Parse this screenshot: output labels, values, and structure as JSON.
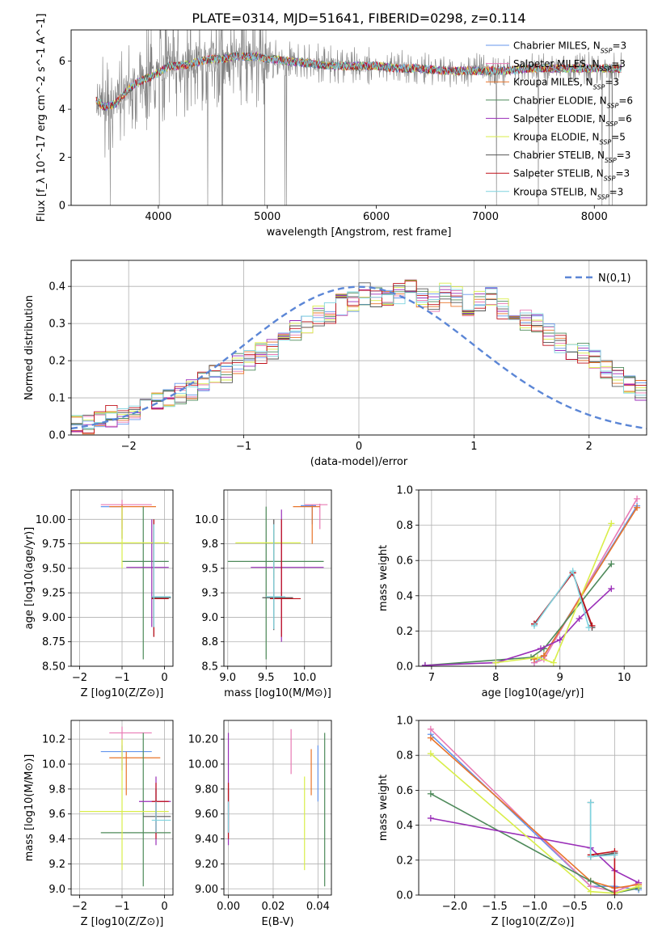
{
  "title": "PLATE=0314, MJD=51641, FIBERID=0298, z=0.114",
  "series_style": [
    {
      "name": "Chabrier MILES",
      "nssp": "3",
      "color": "#6495ed"
    },
    {
      "name": "Salpeter MILES",
      "nssp": "3",
      "color": "#e87ab4"
    },
    {
      "name": "Kroupa MILES",
      "nssp": "3",
      "color": "#e8742a"
    },
    {
      "name": "Chabrier ELODIE",
      "nssp": "6",
      "color": "#4e8a5a"
    },
    {
      "name": "Salpeter ELODIE",
      "nssp": "6",
      "color": "#9a2eb8"
    },
    {
      "name": "Kroupa ELODIE",
      "nssp": "5",
      "color": "#d9ee4a"
    },
    {
      "name": "Chabrier STELIB",
      "nssp": "3",
      "color": "#555555"
    },
    {
      "name": "Salpeter STELIB",
      "nssp": "3",
      "color": "#c0101a"
    },
    {
      "name": "Kroupa STELIB",
      "nssp": "3",
      "color": "#7fd3df"
    }
  ],
  "chart_data": [
    {
      "type": "line",
      "xlabel": "wavelength [Angstrom, rest frame]",
      "ylabel": "Flux [f_λ 10^-17 erg cm^-2 s^-1 A^-1]",
      "xlim": [
        3200,
        8480
      ],
      "ylim": [
        0,
        7.3
      ],
      "xticks": [
        4000,
        5000,
        6000,
        7000,
        8000
      ],
      "yticks": [
        0,
        2,
        4,
        6
      ],
      "grid": false,
      "legend": "right",
      "data_wavelength": [
        3430,
        3500,
        3600,
        3700,
        3800,
        3900,
        4000,
        4100,
        4200,
        4300,
        4400,
        4500,
        4600,
        4700,
        4800,
        4900,
        5000,
        5200,
        5400,
        5600,
        5800,
        6000,
        6200,
        6400,
        6600,
        6800,
        7000,
        7200,
        7400,
        7600,
        7800,
        8000,
        8200,
        8250
      ],
      "data_flux": [
        4.4,
        4.1,
        4.3,
        4.8,
        5.2,
        5.3,
        5.6,
        5.9,
        5.8,
        5.9,
        6.1,
        6.2,
        6.1,
        6.3,
        6.3,
        6.2,
        6.1,
        6.0,
        5.9,
        5.9,
        5.8,
        5.8,
        5.8,
        5.7,
        5.6,
        5.6,
        5.7,
        5.6,
        5.7,
        5.7,
        5.7,
        5.7,
        5.7,
        5.7
      ],
      "model_flux": [
        4.4,
        4.1,
        4.2,
        4.7,
        5.1,
        5.3,
        5.5,
        5.8,
        5.8,
        5.9,
        6.0,
        6.1,
        6.1,
        6.2,
        6.2,
        6.2,
        6.1,
        6.0,
        5.9,
        5.8,
        5.8,
        5.8,
        5.7,
        5.7,
        5.6,
        5.6,
        5.6,
        5.6,
        5.7,
        5.7,
        5.7,
        5.7,
        5.7,
        5.7
      ]
    },
    {
      "type": "histogram",
      "xlabel": "(data-model)/error",
      "ylabel": "Normed distribution",
      "xlim": [
        -2.5,
        2.5
      ],
      "ylim": [
        0,
        0.47
      ],
      "xticks": [
        -2,
        -1,
        0,
        1,
        2
      ],
      "yticks": [
        0.0,
        0.1,
        0.2,
        0.3,
        0.4
      ],
      "grid": true,
      "legend": "top-right",
      "reference_curve": {
        "label": "N(0,1)",
        "mean": 0,
        "sigma": 1
      },
      "bin_width": 0.1,
      "bin_start": -2.5,
      "values": [
        0.03,
        0.03,
        0.04,
        0.05,
        0.05,
        0.07,
        0.08,
        0.09,
        0.1,
        0.11,
        0.12,
        0.14,
        0.16,
        0.17,
        0.19,
        0.2,
        0.22,
        0.23,
        0.26,
        0.28,
        0.3,
        0.32,
        0.33,
        0.35,
        0.36,
        0.38,
        0.37,
        0.36,
        0.38,
        0.39,
        0.37,
        0.36,
        0.38,
        0.37,
        0.35,
        0.36,
        0.37,
        0.34,
        0.33,
        0.31,
        0.3,
        0.27,
        0.25,
        0.23,
        0.22,
        0.2,
        0.18,
        0.16,
        0.14,
        0.12,
        0.1,
        0.09,
        0.08,
        0.07,
        0.06,
        0.05,
        0.04,
        0.04,
        0.03,
        0.03,
        0.03
      ]
    },
    {
      "type": "errorbar",
      "xlabel": "Z [log10(Z/Z⊙)]",
      "ylabel": "age  [log10(age/yr)]",
      "xlim": [
        -2.2,
        0.2
      ],
      "ylim": [
        8.5,
        10.3
      ],
      "xticks": [
        -2,
        -1,
        0
      ],
      "yticks": [
        8.5,
        8.75,
        9.0,
        9.25,
        9.5,
        9.75,
        10.0
      ],
      "grid": true,
      "points": [
        {
          "s": 0,
          "x": -1.0,
          "xe": [
            -1.5,
            -0.95
          ],
          "y": 10.13,
          "ye": [
            9.8,
            10.15
          ]
        },
        {
          "s": 1,
          "x": -1.0,
          "xe": [
            -1.5,
            -0.3
          ],
          "y": 10.15,
          "ye": [
            9.9,
            10.2
          ]
        },
        {
          "s": 2,
          "x": -1.0,
          "xe": [
            -1.3,
            -0.2
          ],
          "y": 10.13,
          "ye": [
            9.8,
            10.15
          ]
        },
        {
          "s": 3,
          "x": -0.5,
          "xe": [
            -1.0,
            0.1
          ],
          "y": 9.57,
          "ye": [
            8.57,
            10.13
          ]
        },
        {
          "s": 4,
          "x": -0.3,
          "xe": [
            -0.9,
            0.1
          ],
          "y": 9.51,
          "ye": [
            8.9,
            10.0
          ]
        },
        {
          "s": 5,
          "x": -1.0,
          "xe": [
            -2.0,
            0.1
          ],
          "y": 9.76,
          "ye": [
            9.5,
            10.13
          ]
        },
        {
          "s": 6,
          "x": -0.25,
          "xe": [
            -0.3,
            0.15
          ],
          "y": 9.2,
          "ye": [
            8.8,
            10.0
          ]
        },
        {
          "s": 7,
          "x": -0.25,
          "xe": [
            -0.3,
            0.1
          ],
          "y": 9.19,
          "ye": [
            8.8,
            10.0
          ]
        },
        {
          "s": 8,
          "x": -0.25,
          "xe": [
            -0.3,
            0.15
          ],
          "y": 9.21,
          "ye": [
            8.9,
            9.95
          ]
        }
      ]
    },
    {
      "type": "errorbar",
      "xlabel": "mass [log10(M/M⊙)]",
      "ylabel": "",
      "xlim": [
        8.95,
        10.35
      ],
      "ylim": [
        8.5,
        10.3
      ],
      "xticks": [
        9.0,
        9.5,
        10.0
      ],
      "yticks": [
        8.5,
        8.75,
        9.0,
        9.25,
        9.5,
        9.75,
        10.0
      ],
      "grid": true,
      "points": [
        {
          "s": 0,
          "x": 10.1,
          "xe": [
            9.95,
            10.15
          ],
          "y": 10.14,
          "ye": [
            9.95,
            10.15
          ]
        },
        {
          "s": 1,
          "x": 10.2,
          "xe": [
            10.0,
            10.3
          ],
          "y": 10.15,
          "ye": [
            9.9,
            10.16
          ]
        },
        {
          "s": 2,
          "x": 10.1,
          "xe": [
            9.85,
            10.2
          ],
          "y": 10.13,
          "ye": [
            9.75,
            10.14
          ]
        },
        {
          "s": 3,
          "x": 9.5,
          "xe": [
            9.0,
            10.25
          ],
          "y": 9.57,
          "ye": [
            8.57,
            10.13
          ]
        },
        {
          "s": 4,
          "x": 9.7,
          "xe": [
            9.3,
            10.25
          ],
          "y": 9.51,
          "ye": [
            8.75,
            10.1
          ]
        },
        {
          "s": 5,
          "x": 9.6,
          "xe": [
            9.1,
            9.95
          ],
          "y": 9.76,
          "ye": [
            9.4,
            9.9
          ]
        },
        {
          "s": 6,
          "x": 9.6,
          "xe": [
            9.45,
            9.85
          ],
          "y": 9.2,
          "ye": [
            8.87,
            10.0
          ]
        },
        {
          "s": 7,
          "x": 9.7,
          "xe": [
            9.55,
            9.95
          ],
          "y": 9.19,
          "ye": [
            8.8,
            10.0
          ]
        },
        {
          "s": 8,
          "x": 9.6,
          "xe": [
            9.5,
            9.75
          ],
          "y": 9.21,
          "ye": [
            8.88,
            9.95
          ]
        }
      ]
    },
    {
      "type": "line",
      "xlabel": "age  [log10(age/yr)]",
      "ylabel": "mass weight",
      "xlim": [
        6.8,
        10.35
      ],
      "ylim": [
        0,
        1.0
      ],
      "xticks": [
        7,
        8,
        9,
        10
      ],
      "yticks": [
        0.0,
        0.2,
        0.4,
        0.6,
        0.8,
        1.0
      ],
      "grid": true,
      "series": [
        {
          "s": 0,
          "x": [
            8.6,
            8.75,
            10.2
          ],
          "y": [
            0.02,
            0.06,
            0.91
          ]
        },
        {
          "s": 1,
          "x": [
            8.6,
            8.75,
            10.2
          ],
          "y": [
            0.02,
            0.04,
            0.95
          ]
        },
        {
          "s": 2,
          "x": [
            8.6,
            8.75,
            10.2
          ],
          "y": [
            0.04,
            0.06,
            0.9
          ]
        },
        {
          "s": 3,
          "x": [
            6.9,
            8.55,
            8.75,
            9.8
          ],
          "y": [
            0.005,
            0.05,
            0.1,
            0.58
          ]
        },
        {
          "s": 4,
          "x": [
            6.9,
            8.0,
            8.7,
            9.0,
            9.3,
            9.8
          ],
          "y": [
            0.005,
            0.02,
            0.1,
            0.15,
            0.27,
            0.44
          ]
        },
        {
          "s": 5,
          "x": [
            8.0,
            8.65,
            8.9,
            9.8
          ],
          "y": [
            0.02,
            0.05,
            0.02,
            0.81
          ]
        },
        {
          "s": 6,
          "x": [
            8.6,
            9.2,
            9.5
          ],
          "y": [
            0.24,
            0.53,
            0.22
          ]
        },
        {
          "s": 7,
          "x": [
            8.6,
            9.2,
            9.5
          ],
          "y": [
            0.24,
            0.53,
            0.23
          ]
        },
        {
          "s": 8,
          "x": [
            8.6,
            9.2,
            9.45
          ],
          "y": [
            0.23,
            0.54,
            0.22
          ]
        }
      ]
    },
    {
      "type": "errorbar",
      "xlabel": "Z [log10(Z/Z⊙)]",
      "ylabel": "mass [log10(M/M⊙)]",
      "xlim": [
        -2.2,
        0.2
      ],
      "ylim": [
        8.95,
        10.35
      ],
      "xticks": [
        -2,
        -1,
        0
      ],
      "yticks": [
        9.0,
        9.2,
        9.4,
        9.6,
        9.8,
        10.0,
        10.2
      ],
      "grid": true,
      "points": [
        {
          "s": 0,
          "x": -1.0,
          "xe": [
            -1.5,
            -0.3
          ],
          "y": 10.1,
          "ye": [
            9.95,
            10.15
          ]
        },
        {
          "s": 1,
          "x": -1.0,
          "xe": [
            -1.3,
            -0.3
          ],
          "y": 10.25,
          "ye": [
            9.95,
            10.3
          ]
        },
        {
          "s": 2,
          "x": -0.9,
          "xe": [
            -1.3,
            -0.1
          ],
          "y": 10.05,
          "ye": [
            9.75,
            10.1
          ]
        },
        {
          "s": 3,
          "x": -0.5,
          "xe": [
            -1.5,
            0.15
          ],
          "y": 9.45,
          "ye": [
            9.02,
            10.25
          ]
        },
        {
          "s": 4,
          "x": -0.2,
          "xe": [
            -0.6,
            0.15
          ],
          "y": 9.7,
          "ye": [
            9.35,
            9.9
          ]
        },
        {
          "s": 5,
          "x": -1.0,
          "xe": [
            -2.0,
            0.1
          ],
          "y": 9.62,
          "ye": [
            9.15,
            10.2
          ]
        },
        {
          "s": 6,
          "x": -0.2,
          "xe": [
            -0.5,
            0.15
          ],
          "y": 9.58,
          "ye": [
            9.45,
            9.8
          ]
        },
        {
          "s": 7,
          "x": -0.2,
          "xe": [
            -0.3,
            0.1
          ],
          "y": 9.7,
          "ye": [
            9.4,
            9.85
          ]
        },
        {
          "s": 8,
          "x": -0.2,
          "xe": [
            -0.3,
            0.15
          ],
          "y": 9.55,
          "ye": [
            9.45,
            9.7
          ]
        }
      ]
    },
    {
      "type": "errorbar",
      "xlabel": "E(B-V)",
      "ylabel": "",
      "xlim": [
        -0.002,
        0.046
      ],
      "ylim": [
        8.95,
        10.35
      ],
      "xticks": [
        0.0,
        0.02,
        0.04
      ],
      "yticks": [
        9.0,
        9.2,
        9.4,
        9.6,
        9.8,
        10.0,
        10.2
      ],
      "grid": true,
      "points": [
        {
          "s": 0,
          "x": 0.04,
          "xe": [
            0.04,
            0.04
          ],
          "y": 9.9,
          "ye": [
            9.7,
            10.15
          ]
        },
        {
          "s": 1,
          "x": 0.028,
          "xe": [
            0.028,
            0.028
          ],
          "y": 10.1,
          "ye": [
            9.92,
            10.28
          ]
        },
        {
          "s": 2,
          "x": 0.037,
          "xe": [
            0.037,
            0.037
          ],
          "y": 9.9,
          "ye": [
            9.75,
            10.12
          ]
        },
        {
          "s": 3,
          "x": 0.043,
          "xe": [
            0.043,
            0.043
          ],
          "y": 9.6,
          "ye": [
            9.02,
            10.25
          ]
        },
        {
          "s": 4,
          "x": 0.0,
          "xe": [
            0.0,
            0.0
          ],
          "y": 9.8,
          "ye": [
            9.35,
            10.25
          ]
        },
        {
          "s": 5,
          "x": 0.034,
          "xe": [
            0.034,
            0.034
          ],
          "y": 9.5,
          "ye": [
            9.15,
            9.9
          ]
        },
        {
          "s": 6,
          "x": 0.0,
          "xe": [
            0.0,
            0.0
          ],
          "y": 9.6,
          "ye": [
            9.45,
            9.8
          ]
        },
        {
          "s": 7,
          "x": 0.0,
          "xe": [
            0.0,
            0.0
          ],
          "y": 9.7,
          "ye": [
            9.4,
            9.85
          ]
        },
        {
          "s": 8,
          "x": 0.0,
          "xe": [
            0.0,
            0.0
          ],
          "y": 9.55,
          "ye": [
            9.45,
            9.7
          ]
        }
      ]
    },
    {
      "type": "line",
      "xlabel": "Z [log10(Z/Z⊙)]",
      "ylabel": "mass weight",
      "xlim": [
        -2.45,
        0.4
      ],
      "ylim": [
        0,
        1.0
      ],
      "xticks": [
        -2.0,
        -1.5,
        -1.0,
        -0.5,
        0.0
      ],
      "yticks": [
        0.0,
        0.2,
        0.4,
        0.6,
        0.8,
        1.0
      ],
      "grid": true,
      "series": [
        {
          "s": 0,
          "x": [
            -2.3,
            -0.3,
            0.0,
            0.3
          ],
          "y": [
            0.92,
            0.05,
            0.05,
            0.03
          ]
        },
        {
          "s": 1,
          "x": [
            -2.3,
            -0.3,
            0.0,
            0.3
          ],
          "y": [
            0.95,
            0.05,
            0.02,
            0.07
          ]
        },
        {
          "s": 2,
          "x": [
            -2.3,
            -0.3,
            0.0,
            0.3
          ],
          "y": [
            0.9,
            0.08,
            0.04,
            0.06
          ]
        },
        {
          "s": 3,
          "x": [
            -2.3,
            -0.3,
            0.0,
            0.3
          ],
          "y": [
            0.58,
            0.08,
            0.01,
            0.04
          ]
        },
        {
          "s": 4,
          "x": [
            -2.3,
            -0.3,
            0.0,
            0.3
          ],
          "y": [
            0.44,
            0.27,
            0.14,
            0.07
          ]
        },
        {
          "s": 5,
          "x": [
            -2.3,
            -0.3,
            0.0,
            0.3
          ],
          "y": [
            0.81,
            0.02,
            0.01,
            0.05
          ]
        },
        {
          "s": 6,
          "x": [
            -0.3,
            -0.3,
            0.0
          ],
          "y": [
            0.53,
            0.22,
            0.24
          ]
        },
        {
          "s": 7,
          "x": [
            -0.3,
            0.0,
            0.0
          ],
          "y": [
            0.23,
            0.25,
            0.0
          ]
        },
        {
          "s": 8,
          "x": [
            -0.3,
            -0.3,
            0.0
          ],
          "y": [
            0.53,
            0.22,
            0.23
          ]
        }
      ]
    }
  ]
}
